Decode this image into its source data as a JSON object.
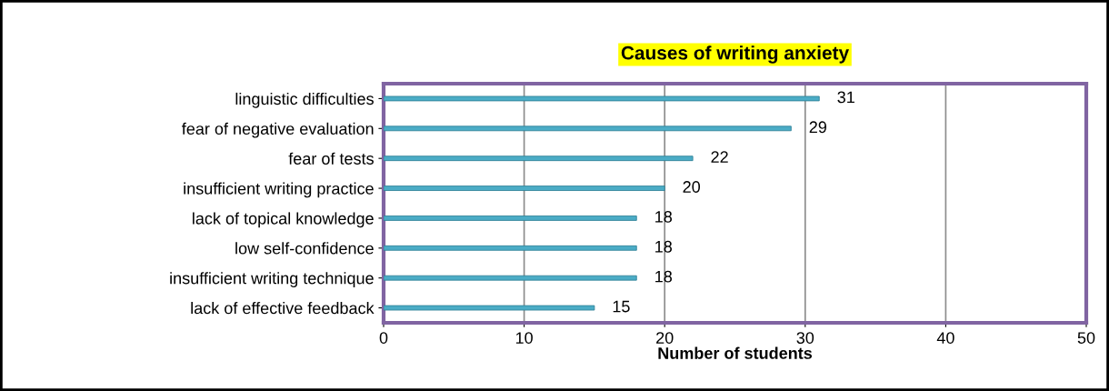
{
  "chart_data": {
    "type": "bar",
    "orientation": "horizontal",
    "title": "Causes of writing anxiety",
    "xlabel": "Number of students",
    "categories": [
      "linguistic difficulties",
      "fear of negative evaluation",
      "fear of tests",
      "insufficient writing practice",
      "lack of topical knowledge",
      "low self-confidence",
      "insufficient writing technique",
      "lack of effective feedback"
    ],
    "values": [
      31,
      29,
      22,
      20,
      18,
      18,
      18,
      15
    ],
    "color": "#4bacc6",
    "xlim": [
      0,
      50
    ],
    "xticks": [
      0,
      10,
      20,
      30,
      40,
      50
    ],
    "grid": "x",
    "data_labels": true,
    "legend": false
  }
}
